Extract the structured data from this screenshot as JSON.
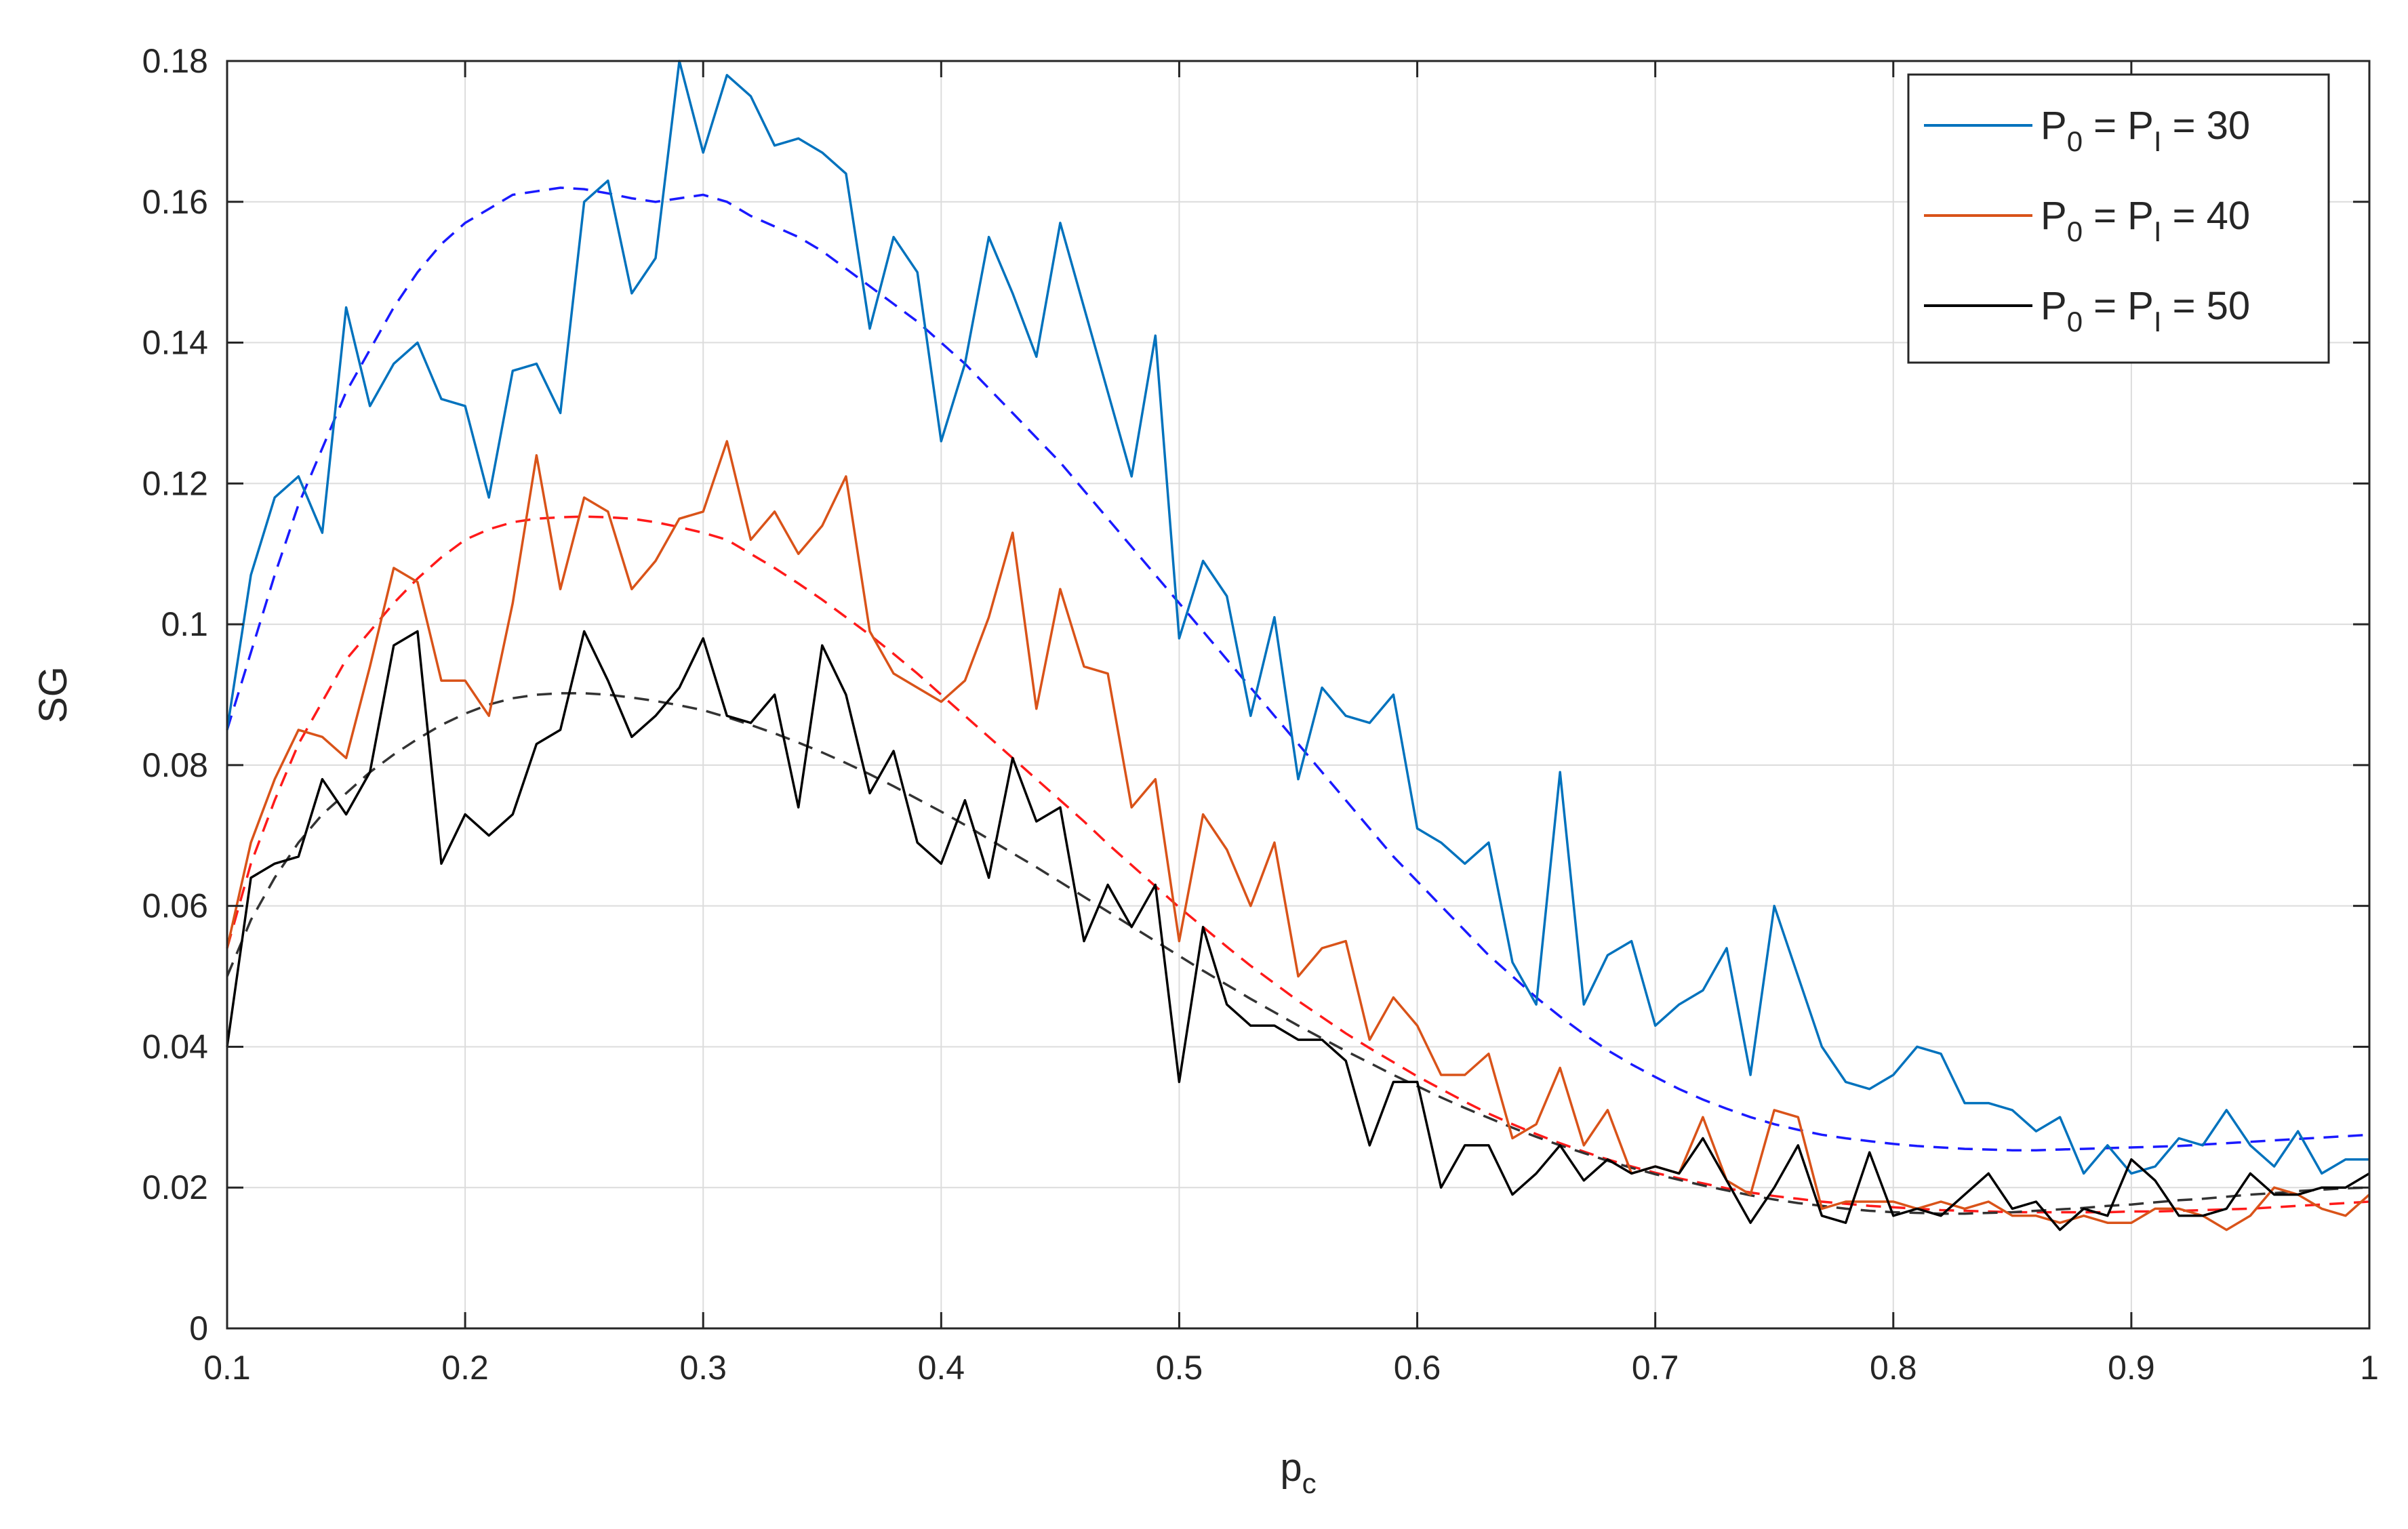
{
  "chart_data": {
    "type": "line",
    "xlabel": "p",
    "xlabel_sub": "c",
    "ylabel": "SG",
    "xlim": [
      0.1,
      1
    ],
    "ylim": [
      0,
      0.18
    ],
    "grid": true,
    "legend_position": "top-right",
    "x_ticks": [
      0.1,
      0.2,
      0.3,
      0.4,
      0.5,
      0.6,
      0.7,
      0.8,
      0.9,
      1
    ],
    "x_tick_labels": [
      "0.1",
      "0.2",
      "0.3",
      "0.4",
      "0.5",
      "0.6",
      "0.7",
      "0.8",
      "0.9",
      "1"
    ],
    "y_ticks": [
      0,
      0.02,
      0.04,
      0.06,
      0.08,
      0.1,
      0.12,
      0.14,
      0.16,
      0.18
    ],
    "y_tick_labels": [
      "0",
      "0.02",
      "0.04",
      "0.06",
      "0.08",
      "0.1",
      "0.12",
      "0.14",
      "0.16",
      "0.18"
    ],
    "x": [
      0.1,
      0.11,
      0.12,
      0.13,
      0.14,
      0.15,
      0.16,
      0.17,
      0.18,
      0.19,
      0.2,
      0.21,
      0.22,
      0.23,
      0.24,
      0.25,
      0.26,
      0.27,
      0.28,
      0.29,
      0.3,
      0.31,
      0.32,
      0.33,
      0.34,
      0.35,
      0.36,
      0.37,
      0.38,
      0.39,
      0.4,
      0.41,
      0.42,
      0.43,
      0.44,
      0.45,
      0.46,
      0.47,
      0.48,
      0.49,
      0.5,
      0.51,
      0.52,
      0.53,
      0.54,
      0.55,
      0.56,
      0.57,
      0.58,
      0.59,
      0.6,
      0.61,
      0.62,
      0.63,
      0.64,
      0.65,
      0.66,
      0.67,
      0.68,
      0.69,
      0.7,
      0.71,
      0.72,
      0.73,
      0.74,
      0.75,
      0.76,
      0.77,
      0.78,
      0.79,
      0.8,
      0.81,
      0.82,
      0.83,
      0.84,
      0.85,
      0.86,
      0.87,
      0.88,
      0.89,
      0.9,
      0.91,
      0.92,
      0.93,
      0.94,
      0.95,
      0.96,
      0.97,
      0.98,
      0.99,
      1.0
    ],
    "series": [
      {
        "legend": {
          "p_main": "P",
          "p_sub_first": "0",
          "eq1": " = P",
          "p_sub_second": "I",
          "eq2": " = 30"
        },
        "color": "#0072BD",
        "fit_color": "#1a1aff",
        "values": [
          0.085,
          0.107,
          0.118,
          0.121,
          0.113,
          0.145,
          0.131,
          0.137,
          0.14,
          0.132,
          0.131,
          0.118,
          0.136,
          0.137,
          0.13,
          0.16,
          0.163,
          0.147,
          0.152,
          0.18,
          0.167,
          0.178,
          0.175,
          0.168,
          0.169,
          0.167,
          0.164,
          0.142,
          0.155,
          0.15,
          0.126,
          0.137,
          0.155,
          0.147,
          0.138,
          0.157,
          0.145,
          0.133,
          0.121,
          0.141,
          0.098,
          0.109,
          0.104,
          0.087,
          0.101,
          0.078,
          0.091,
          0.087,
          0.086,
          0.09,
          0.071,
          0.069,
          0.066,
          0.069,
          0.052,
          0.046,
          0.079,
          0.046,
          0.053,
          0.055,
          0.043,
          0.046,
          0.048,
          0.054,
          0.036,
          0.06,
          0.05,
          0.04,
          0.035,
          0.034,
          0.036,
          0.04,
          0.039,
          0.032,
          0.032,
          0.031,
          0.028,
          0.03,
          0.022,
          0.026,
          0.022,
          0.023,
          0.027,
          0.026,
          0.031,
          0.026,
          0.023,
          0.028,
          0.022,
          0.024,
          0.024
        ],
        "fit": [
          0.085,
          0.096,
          0.107,
          0.117,
          0.125,
          0.133,
          0.139,
          0.145,
          0.15,
          0.154,
          0.157,
          0.159,
          0.161,
          0.1615,
          0.162,
          0.1618,
          0.1612,
          0.1605,
          0.16,
          0.1605,
          0.161,
          0.16,
          0.158,
          0.1565,
          0.155,
          0.153,
          0.1505,
          0.148,
          0.1455,
          0.143,
          0.14,
          0.137,
          0.1335,
          0.13,
          0.1265,
          0.123,
          0.119,
          0.115,
          0.111,
          0.107,
          0.103,
          0.099,
          0.095,
          0.091,
          0.087,
          0.083,
          0.079,
          0.075,
          0.071,
          0.067,
          0.0635,
          0.06,
          0.0565,
          0.053,
          0.05,
          0.047,
          0.0443,
          0.0418,
          0.0395,
          0.0375,
          0.0357,
          0.034,
          0.0325,
          0.0312,
          0.03,
          0.029,
          0.0282,
          0.0275,
          0.027,
          0.0266,
          0.0262,
          0.0259,
          0.0257,
          0.0255,
          0.0254,
          0.0253,
          0.0253,
          0.0254,
          0.0255,
          0.0256,
          0.0257,
          0.0258,
          0.0259,
          0.0261,
          0.0263,
          0.0265,
          0.0267,
          0.0269,
          0.0271,
          0.0273,
          0.0275
        ]
      },
      {
        "legend": {
          "p_main": "P",
          "p_sub_first": "0",
          "eq1": " = P",
          "p_sub_second": "I",
          "eq2": " = 40"
        },
        "color": "#D95319",
        "fit_color": "#ff1a1a",
        "values": [
          0.054,
          0.069,
          0.078,
          0.085,
          0.084,
          0.081,
          0.094,
          0.108,
          0.106,
          0.092,
          0.092,
          0.087,
          0.103,
          0.124,
          0.105,
          0.118,
          0.116,
          0.105,
          0.109,
          0.115,
          0.116,
          0.126,
          0.112,
          0.116,
          0.11,
          0.114,
          0.121,
          0.099,
          0.093,
          0.091,
          0.089,
          0.092,
          0.101,
          0.113,
          0.088,
          0.105,
          0.094,
          0.093,
          0.074,
          0.078,
          0.055,
          0.073,
          0.068,
          0.06,
          0.069,
          0.05,
          0.054,
          0.055,
          0.041,
          0.047,
          0.043,
          0.036,
          0.036,
          0.039,
          0.027,
          0.029,
          0.037,
          0.026,
          0.031,
          0.022,
          0.023,
          0.022,
          0.03,
          0.021,
          0.019,
          0.031,
          0.03,
          0.017,
          0.018,
          0.018,
          0.018,
          0.017,
          0.018,
          0.017,
          0.018,
          0.016,
          0.016,
          0.015,
          0.016,
          0.015,
          0.015,
          0.017,
          0.017,
          0.016,
          0.014,
          0.016,
          0.02,
          0.019,
          0.017,
          0.016,
          0.019
        ],
        "fit": [
          0.054,
          0.066,
          0.075,
          0.083,
          0.089,
          0.095,
          0.099,
          0.103,
          0.1065,
          0.1095,
          0.112,
          0.1135,
          0.1145,
          0.115,
          0.1152,
          0.1153,
          0.1152,
          0.115,
          0.1145,
          0.1138,
          0.113,
          0.112,
          0.11,
          0.108,
          0.1058,
          0.1035,
          0.101,
          0.0985,
          0.0958,
          0.093,
          0.09,
          0.087,
          0.084,
          0.081,
          0.078,
          0.075,
          0.072,
          0.0688,
          0.0658,
          0.0628,
          0.0598,
          0.057,
          0.0542,
          0.0515,
          0.049,
          0.0465,
          0.0442,
          0.0419,
          0.0398,
          0.0378,
          0.0358,
          0.034,
          0.0322,
          0.0305,
          0.029,
          0.0276,
          0.0263,
          0.0251,
          0.024,
          0.023,
          0.0221,
          0.0213,
          0.0206,
          0.0199,
          0.0193,
          0.0188,
          0.0184,
          0.018,
          0.0177,
          0.0174,
          0.0172,
          0.017,
          0.0168,
          0.0167,
          0.0166,
          0.0165,
          0.0165,
          0.0165,
          0.0165,
          0.0165,
          0.0166,
          0.0166,
          0.0167,
          0.0168,
          0.0169,
          0.017,
          0.0172,
          0.0174,
          0.0176,
          0.0178,
          0.018
        ]
      },
      {
        "legend": {
          "p_main": "P",
          "p_sub_first": "0",
          "eq1": " = P",
          "p_sub_second": "I",
          "eq2": " = 50"
        },
        "color": "#000000",
        "fit_color": "#333333",
        "values": [
          0.04,
          0.064,
          0.066,
          0.067,
          0.078,
          0.073,
          0.079,
          0.097,
          0.099,
          0.066,
          0.073,
          0.07,
          0.073,
          0.083,
          0.085,
          0.099,
          0.092,
          0.084,
          0.087,
          0.091,
          0.098,
          0.087,
          0.086,
          0.09,
          0.074,
          0.097,
          0.09,
          0.076,
          0.082,
          0.069,
          0.066,
          0.075,
          0.064,
          0.081,
          0.072,
          0.074,
          0.055,
          0.063,
          0.057,
          0.063,
          0.035,
          0.057,
          0.046,
          0.043,
          0.043,
          0.041,
          0.041,
          0.038,
          0.026,
          0.035,
          0.035,
          0.02,
          0.026,
          0.026,
          0.019,
          0.022,
          0.026,
          0.021,
          0.024,
          0.022,
          0.023,
          0.022,
          0.027,
          0.021,
          0.015,
          0.02,
          0.026,
          0.016,
          0.015,
          0.025,
          0.016,
          0.017,
          0.016,
          0.019,
          0.022,
          0.017,
          0.018,
          0.014,
          0.017,
          0.016,
          0.024,
          0.021,
          0.016,
          0.016,
          0.017,
          0.022,
          0.019,
          0.019,
          0.02,
          0.02,
          0.022
        ],
        "fit": [
          0.05,
          0.058,
          0.064,
          0.069,
          0.073,
          0.076,
          0.079,
          0.0815,
          0.0837,
          0.0857,
          0.0873,
          0.0886,
          0.0895,
          0.09,
          0.0902,
          0.0902,
          0.09,
          0.0896,
          0.0891,
          0.0885,
          0.0878,
          0.0868,
          0.0857,
          0.0845,
          0.0832,
          0.0818,
          0.0803,
          0.0787,
          0.077,
          0.0752,
          0.0734,
          0.0715,
          0.0695,
          0.0675,
          0.0655,
          0.0634,
          0.0613,
          0.0592,
          0.0571,
          0.055,
          0.0529,
          0.0508,
          0.0488,
          0.0468,
          0.0449,
          0.043,
          0.0412,
          0.0394,
          0.0377,
          0.036,
          0.0344,
          0.0328,
          0.0313,
          0.0299,
          0.0285,
          0.0272,
          0.026,
          0.0249,
          0.0238,
          0.0228,
          0.0219,
          0.0211,
          0.0203,
          0.0196,
          0.0189,
          0.0183,
          0.0178,
          0.0174,
          0.017,
          0.0167,
          0.0165,
          0.0164,
          0.0163,
          0.0163,
          0.0164,
          0.0165,
          0.0167,
          0.0169,
          0.0171,
          0.0174,
          0.0176,
          0.0179,
          0.0182,
          0.0184,
          0.0187,
          0.019,
          0.0192,
          0.0195,
          0.0197,
          0.0199,
          0.02
        ]
      }
    ]
  }
}
